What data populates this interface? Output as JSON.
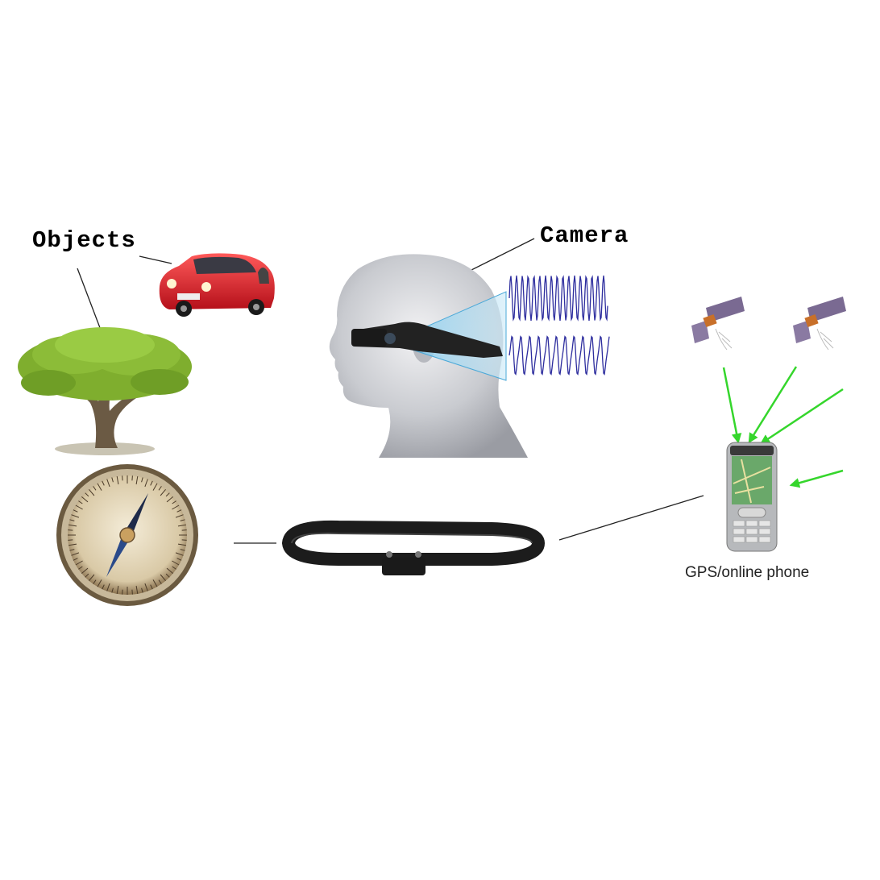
{
  "labels": {
    "objects": "Objects",
    "camera": "Camera",
    "phone": "GPS/online phone"
  },
  "colors": {
    "signal_arrow": "#35d62c",
    "wave": "#2d2d9e",
    "camera_beam": "#9ed4ee",
    "car_body": "#e8202a",
    "tree_foliage": "#7fae2e",
    "belt": "#1c1c1c"
  },
  "icons": {
    "tree": "tree-image",
    "car": "car-image",
    "head": "head-with-camera-image",
    "compass": "compass-image",
    "belt": "belt-image",
    "phone": "phone-image",
    "satellite": "satellite-image"
  }
}
